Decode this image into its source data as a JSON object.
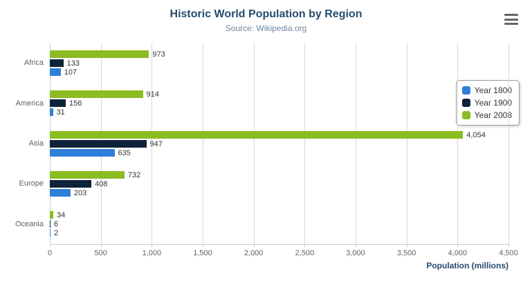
{
  "header": {
    "title": "Historic World Population by Region",
    "subtitle": "Source: Wikipedia.org"
  },
  "menu": {
    "icon": "hamburger-export-menu"
  },
  "chart_data": {
    "type": "bar",
    "orientation": "horizontal",
    "title": "Historic World Population by Region",
    "subtitle": "Source: Wikipedia.org",
    "categories": [
      "Africa",
      "America",
      "Asia",
      "Europe",
      "Oceania"
    ],
    "series": [
      {
        "name": "Year 1800",
        "color": "#2f7ed8",
        "values": [
          107,
          31,
          635,
          203,
          2
        ]
      },
      {
        "name": "Year 1900",
        "color": "#0d233a",
        "values": [
          133,
          156,
          947,
          408,
          6
        ]
      },
      {
        "name": "Year 2008",
        "color": "#8bbc21",
        "values": [
          973,
          914,
          4054,
          732,
          34
        ]
      }
    ],
    "xlabel": "Population (millions)",
    "ylabel": "",
    "xlim": [
      0,
      4500
    ],
    "xticks": [
      0,
      500,
      1000,
      1500,
      2000,
      2500,
      3000,
      3500,
      4000,
      4500
    ],
    "xtick_labels": [
      "0",
      "500",
      "1,000",
      "1,500",
      "2,000",
      "2,500",
      "3,000",
      "3,500",
      "4,000",
      "4,500"
    ],
    "grid": true,
    "legend_position": "right",
    "data_labels": true
  },
  "colors": {
    "title": "#274b6d",
    "subtitle": "#6d869f",
    "axis_label": "#274b6d",
    "tick_label": "#606060",
    "gridline": "#d8d8d8",
    "axis_line": "#c0d0e0"
  }
}
